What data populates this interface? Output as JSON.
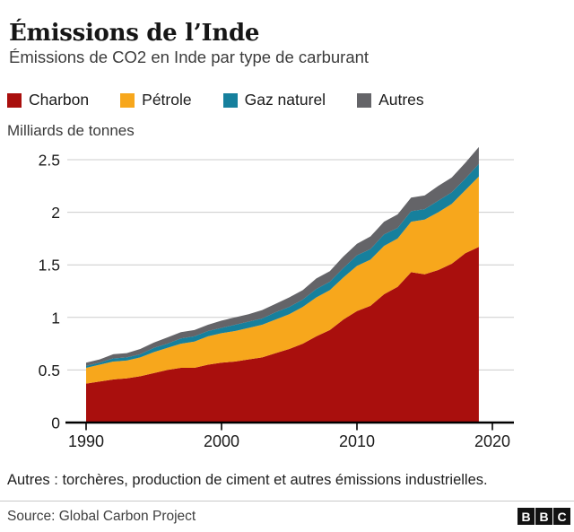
{
  "header": {
    "title": "Émissions de l’Inde",
    "subtitle": "Émissions de CO2 en Inde par type de carburant"
  },
  "legend": {
    "items": [
      {
        "label": "Charbon",
        "color": "#a90f0d"
      },
      {
        "label": "Pétrole",
        "color": "#f7a71c"
      },
      {
        "label": "Gaz naturel",
        "color": "#16809d"
      },
      {
        "label": "Autres",
        "color": "#646468"
      }
    ]
  },
  "axis": {
    "unit_label": "Milliards de tonnes"
  },
  "chart_data": {
    "type": "area",
    "stacked": true,
    "title": "Émissions de CO2 en Inde par type de carburant",
    "ylabel": "Milliards de tonnes",
    "xlabel": "",
    "grid": "horizontal",
    "legend_position": "top",
    "x": [
      1990,
      1991,
      1992,
      1993,
      1994,
      1995,
      1996,
      1997,
      1998,
      1999,
      2000,
      2001,
      2002,
      2003,
      2004,
      2005,
      2006,
      2007,
      2008,
      2009,
      2010,
      2011,
      2012,
      2013,
      2014,
      2015,
      2016,
      2017,
      2018,
      2019
    ],
    "series": [
      {
        "name": "Charbon",
        "color": "#a90f0d",
        "values": [
          0.37,
          0.39,
          0.41,
          0.42,
          0.44,
          0.47,
          0.5,
          0.52,
          0.52,
          0.55,
          0.57,
          0.58,
          0.6,
          0.62,
          0.66,
          0.7,
          0.75,
          0.82,
          0.88,
          0.98,
          1.06,
          1.11,
          1.22,
          1.29,
          1.43,
          1.41,
          1.45,
          1.51,
          1.61,
          1.67
        ]
      },
      {
        "name": "Pétrole",
        "color": "#f7a71c",
        "values": [
          0.15,
          0.16,
          0.17,
          0.17,
          0.18,
          0.2,
          0.21,
          0.23,
          0.25,
          0.27,
          0.28,
          0.29,
          0.3,
          0.31,
          0.32,
          0.33,
          0.35,
          0.37,
          0.38,
          0.4,
          0.43,
          0.44,
          0.46,
          0.46,
          0.48,
          0.52,
          0.55,
          0.57,
          0.6,
          0.67
        ]
      },
      {
        "name": "Gaz naturel",
        "color": "#16809d",
        "values": [
          0.02,
          0.02,
          0.03,
          0.03,
          0.03,
          0.04,
          0.04,
          0.05,
          0.05,
          0.05,
          0.05,
          0.06,
          0.06,
          0.06,
          0.07,
          0.07,
          0.07,
          0.08,
          0.08,
          0.09,
          0.1,
          0.1,
          0.11,
          0.1,
          0.1,
          0.1,
          0.11,
          0.11,
          0.11,
          0.12
        ]
      },
      {
        "name": "Autres",
        "color": "#646468",
        "values": [
          0.03,
          0.03,
          0.04,
          0.04,
          0.05,
          0.05,
          0.06,
          0.06,
          0.06,
          0.06,
          0.07,
          0.07,
          0.07,
          0.08,
          0.08,
          0.09,
          0.09,
          0.1,
          0.1,
          0.11,
          0.11,
          0.12,
          0.12,
          0.13,
          0.13,
          0.13,
          0.14,
          0.14,
          0.15,
          0.16
        ]
      }
    ],
    "x_ticks": [
      1990,
      2000,
      2010,
      2020
    ],
    "y_ticks": [
      0,
      0.5,
      1,
      1.5,
      2,
      2.5
    ],
    "ylim": [
      0,
      2.67
    ],
    "xlim": [
      1990,
      2021.5
    ]
  },
  "footer": {
    "note": "Autres : torchères, production de ciment et autres émissions industrielles.",
    "source": "Source: Global Carbon Project",
    "logo": [
      "B",
      "B",
      "C"
    ]
  }
}
